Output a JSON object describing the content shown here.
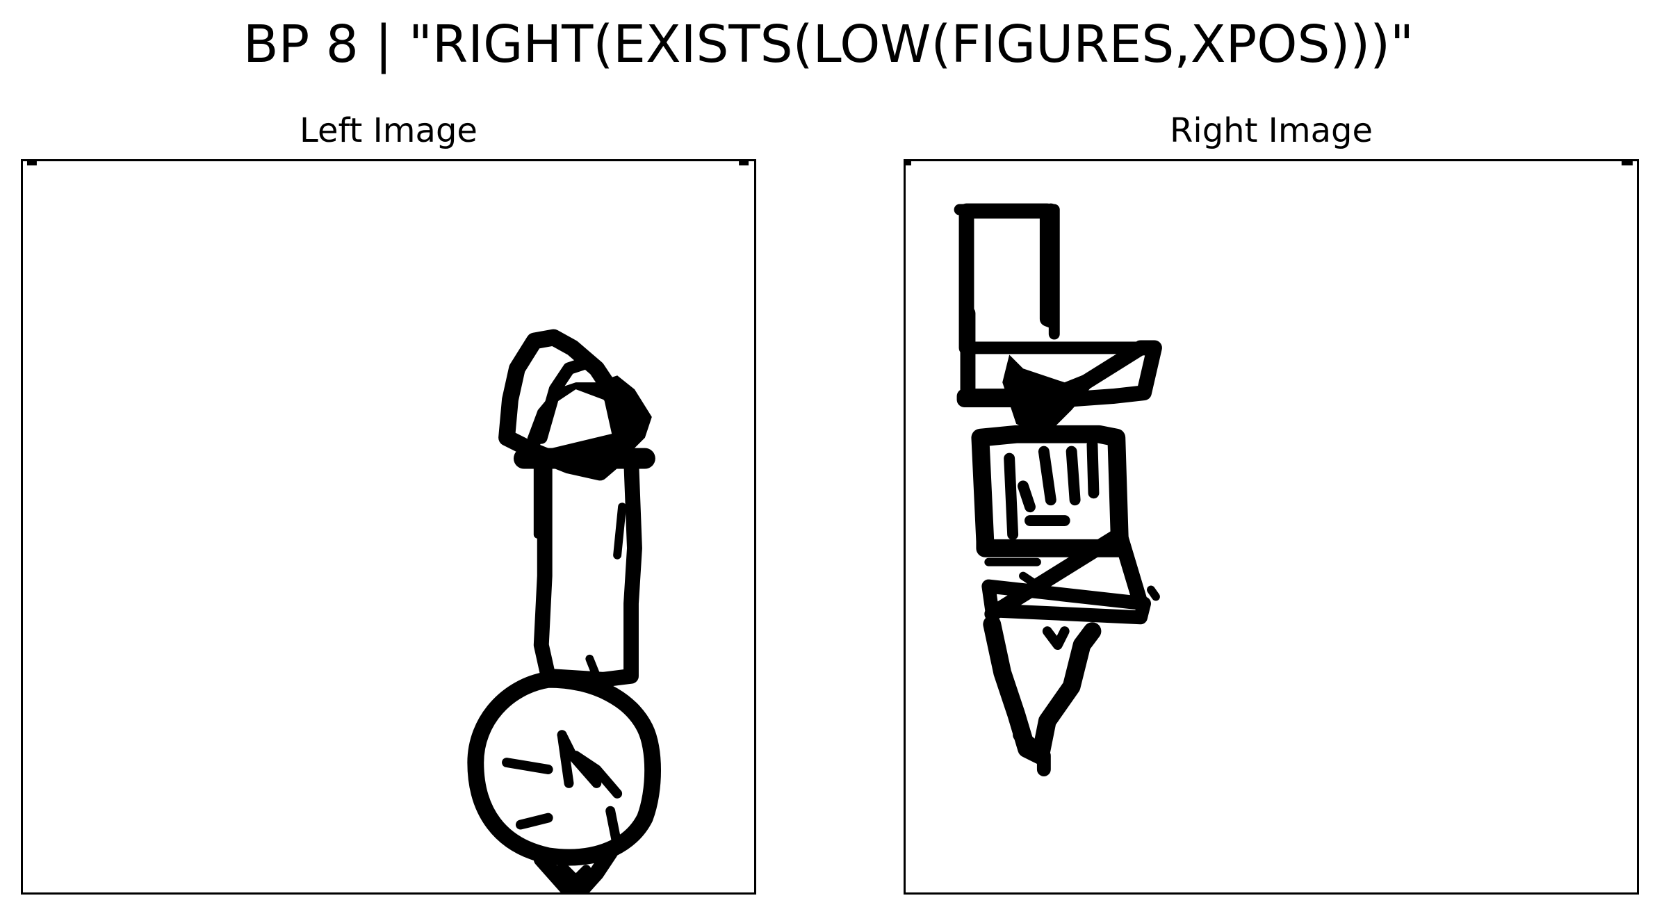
{
  "title": "BP 8 | \"RIGHT(EXISTS(LOW(FIGURES,XPOS)))\"",
  "panels": {
    "left": {
      "title": "Left Image"
    },
    "right": {
      "title": "Right Image"
    }
  },
  "colors": {
    "ink": "#000000",
    "background": "#ffffff"
  }
}
